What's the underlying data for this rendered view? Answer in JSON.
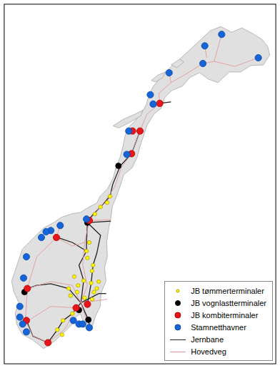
{
  "chart_data": {
    "type": "scatter",
    "xlim": [
      2.6,
      31.6
    ],
    "ylim": [
      57.4,
      72.5
    ],
    "tick_labels": false,
    "grid": false,
    "legend": "bottom-right",
    "series": [
      {
        "name": "JB tømmerterminaler",
        "type": "scatter",
        "marker": "circle",
        "color": "#ffff00",
        "x": [
          13.9,
          13.6,
          12.9,
          12.3,
          11.7,
          11.4,
          11.5,
          12.1,
          12.0,
          11.9,
          12.7,
          12.5,
          12.2,
          10.1,
          11.1,
          10.5,
          9.5,
          9.7,
          10.4,
          11.2,
          12.0,
          9.9,
          8.9,
          8.3,
          8.8
        ],
        "values": [
          64.43,
          64.17,
          63.99,
          63.69,
          62.5,
          62.14,
          61.85,
          61.55,
          61.31,
          60.8,
          60.86,
          60.57,
          60.42,
          61.07,
          60.9,
          60.7,
          60.57,
          60.27,
          60.42,
          60.18,
          60.12,
          59.52,
          59.23,
          58.84,
          58.63
        ]
      },
      {
        "name": "JB vognlastterminaler",
        "type": "scatter",
        "marker": "circle",
        "color": "#000000",
        "x": [
          14.8,
          11.5,
          4.8,
          10.6,
          11.6
        ],
        "values": [
          65.71,
          63.33,
          60.42,
          59.67,
          59.26
        ]
      },
      {
        "name": "JB kombiterminaler",
        "type": "scatter",
        "marker": "circle",
        "color": "#e8151b",
        "x": [
          19.2,
          16.3,
          17.1,
          16.2,
          11.7,
          8.2,
          5.1,
          5.0,
          7.3,
          10.3,
          11.5
        ],
        "values": [
          68.33,
          67.17,
          67.17,
          66.22,
          63.42,
          62.71,
          60.57,
          59.23,
          58.3,
          59.76,
          59.91
        ]
      },
      {
        "name": "Stamnetthavner",
        "type": "scatter",
        "marker": "circle",
        "color": "#1565d8",
        "x": [
          25.8,
          24.0,
          29.7,
          23.8,
          20.2,
          18.2,
          18.5,
          15.9,
          15.7,
          11.4,
          8.6,
          7.6,
          7.1,
          6.6,
          5.0,
          4.7,
          4.3,
          4.3,
          4.6,
          5.0,
          10.0,
          10.6,
          11.0,
          11.7
        ],
        "values": [
          71.22,
          70.74,
          70.24,
          70.0,
          69.61,
          68.69,
          68.3,
          67.17,
          66.19,
          63.48,
          63.21,
          63.0,
          62.95,
          62.71,
          61.9,
          61.01,
          59.82,
          59.37,
          59.08,
          58.75,
          59.23,
          59.08,
          59.08,
          58.93
        ]
      },
      {
        "name": "Jernbane",
        "type": "line",
        "line_style": "solid",
        "color": "#222222",
        "x": [
          17.1,
          16.2,
          15.0,
          14.2,
          13.9,
          12.9,
          12.0,
          11.5,
          null,
          19.2,
          20.4,
          null,
          11.5,
          14.0,
          null,
          11.5,
          11.4,
          11.4,
          10.6,
          11.1,
          10.8,
          null,
          11.5,
          12.9,
          12.5,
          12.1,
          11.9,
          11.5,
          null,
          11.4,
          9.9,
          8.3,
          null,
          10.8,
          9.5,
          7.6,
          6.1,
          5.1,
          null,
          10.8,
          9.9,
          8.9,
          8.3,
          7.3,
          5.7,
          5.0,
          null,
          10.8,
          11.6,
          11.8,
          null,
          10.8,
          12.7,
          13.5
        ],
        "values": [
          67.17,
          66.22,
          65.71,
          64.94,
          64.43,
          63.99,
          63.63,
          63.33,
          null,
          68.33,
          68.39,
          null,
          63.33,
          63.39,
          null,
          63.33,
          62.5,
          62.14,
          61.55,
          60.9,
          59.97,
          null,
          63.33,
          62.8,
          62.05,
          61.55,
          60.8,
          59.91,
          null,
          62.14,
          62.5,
          62.71,
          null,
          59.97,
          60.57,
          60.77,
          60.7,
          60.57,
          null,
          59.97,
          59.52,
          59.23,
          58.84,
          58.3,
          58.57,
          59.23,
          null,
          59.97,
          59.26,
          58.87,
          null,
          59.97,
          60.36,
          60.36
        ]
      },
      {
        "name": "Hovedveg",
        "type": "line",
        "line_style": "solid",
        "color": "#e29a9a",
        "x": [
          29.7,
          27.2,
          25.0,
          23.8,
          22.1,
          20.4,
          19.1,
          19.2,
          17.8,
          17.1,
          16.2,
          15.1,
          14.4,
          13.2,
          11.7,
          11.2,
          11.0,
          11.5,
          10.8,
          11.4,
          11.7,
          null,
          25.8,
          25.0,
          null,
          24.0,
          24.2,
          null,
          20.2,
          20.4,
          null,
          15.9,
          17.1,
          null,
          8.6,
          8.2,
          6.1,
          5.1,
          4.9,
          5.7,
          7.3,
          9.1,
          10.3,
          null,
          5.1,
          7.6,
          9.9,
          10.8,
          null,
          4.6,
          7.6,
          10.3,
          null,
          8.2,
          9.9,
          11.2,
          null,
          11.7,
          14.0,
          null,
          10.8,
          13.6
        ],
        "values": [
          70.24,
          69.88,
          70.09,
          70.0,
          69.58,
          69.2,
          68.75,
          68.33,
          67.86,
          67.17,
          66.22,
          65.63,
          64.82,
          64.14,
          63.42,
          62.5,
          61.55,
          60.7,
          59.97,
          59.26,
          58.87,
          null,
          71.22,
          70.09,
          null,
          70.74,
          70.24,
          null,
          69.61,
          69.2,
          null,
          67.17,
          67.17,
          null,
          63.21,
          62.71,
          61.9,
          60.57,
          59.23,
          58.57,
          58.3,
          58.87,
          59.76,
          null,
          60.57,
          60.86,
          60.7,
          59.97,
          null,
          59.08,
          59.82,
          59.76,
          null,
          62.71,
          62.35,
          62.5,
          null,
          63.42,
          63.45,
          null,
          59.97,
          60.12
        ]
      }
    ]
  }
}
